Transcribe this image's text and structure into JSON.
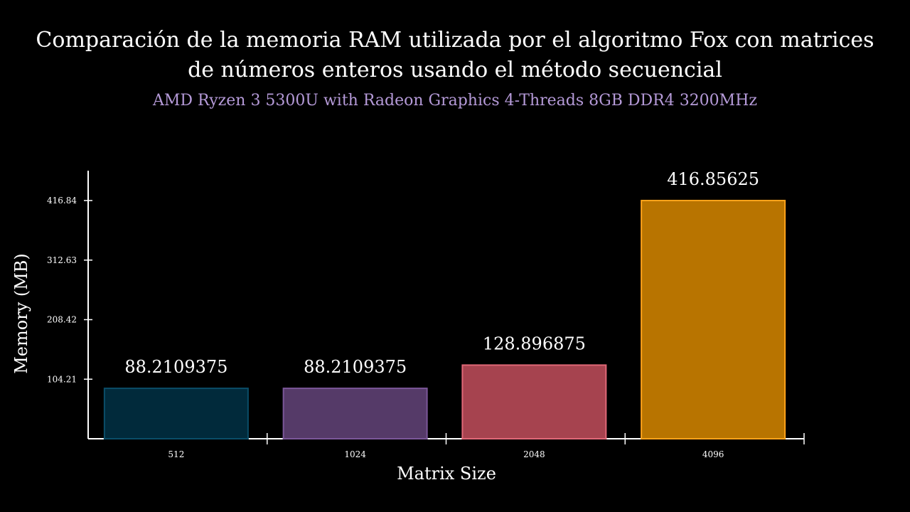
{
  "chart_data": {
    "type": "bar",
    "title_lines": [
      "Comparación de la memoria RAM utilizada por el algoritmo Fox con matrices",
      "de números enteros usando el método secuencial"
    ],
    "subtitle": "AMD Ryzen 3 5300U with Radeon Graphics 4-Threads 8GB DDR4 3200MHz",
    "xlabel": "Matrix Size",
    "ylabel": "Memory (MB)",
    "categories": [
      "512",
      "1024",
      "2048",
      "4096"
    ],
    "values": [
      88.2109375,
      88.2109375,
      128.896875,
      416.85625
    ],
    "value_labels": [
      "88.2109375",
      "88.2109375",
      "128.896875",
      "416.85625"
    ],
    "yticks": [
      104.21,
      208.42,
      312.63,
      416.84
    ],
    "ytick_labels": [
      "104.21",
      "208.42",
      "312.63",
      "416.84"
    ],
    "ylim": [
      0,
      468
    ],
    "grid": false,
    "colors": {
      "background": "#000000",
      "subtitle": "#b59ad8",
      "bar_fills": [
        "#012a3b",
        "#553a68",
        "#a6434f",
        "#b87400"
      ],
      "bar_strokes": [
        "#0a4d68",
        "#7b5799",
        "#e06877",
        "#ffa31a"
      ]
    }
  }
}
